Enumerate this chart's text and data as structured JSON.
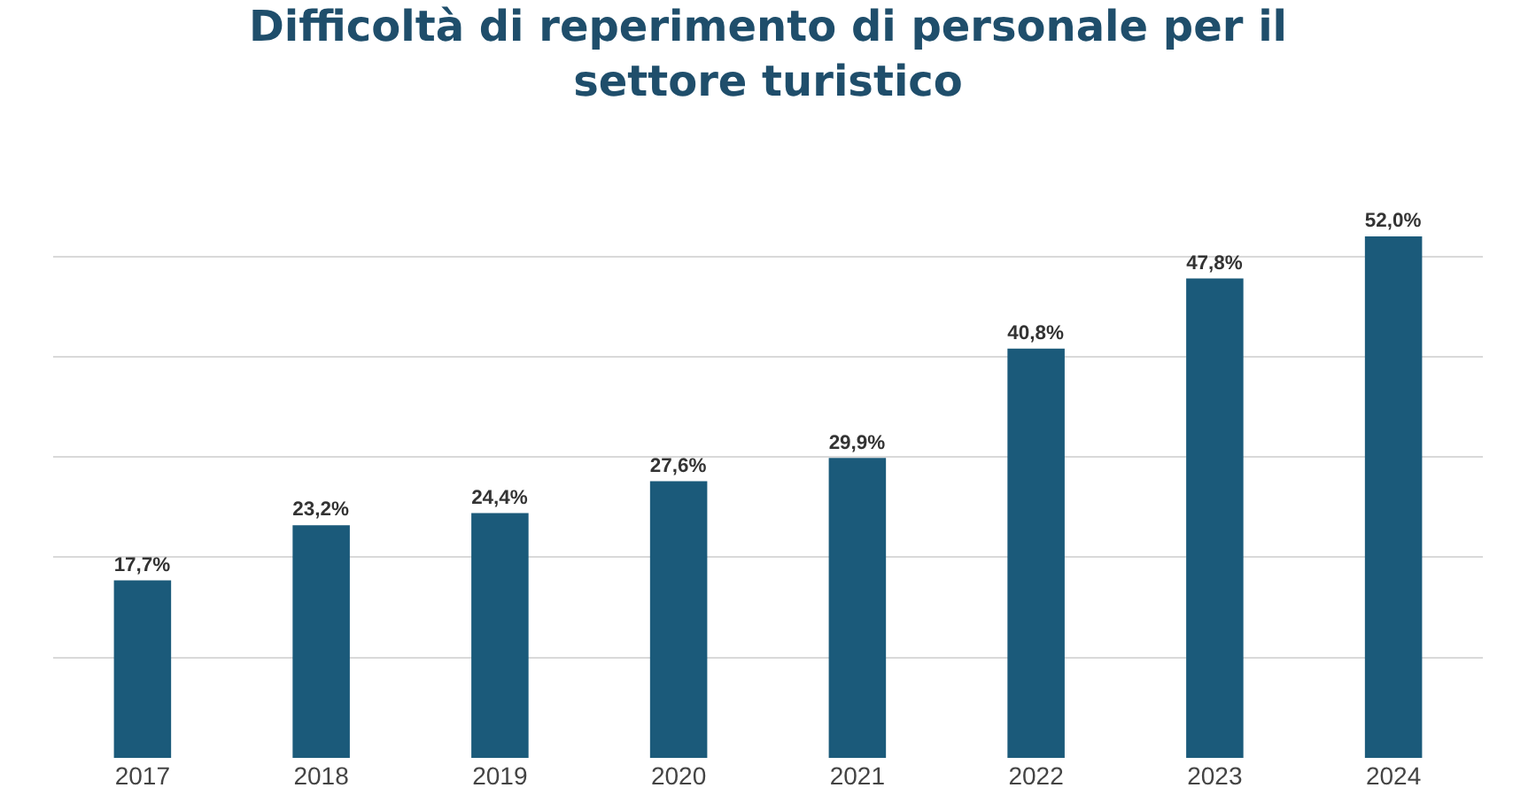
{
  "chart_data": {
    "type": "bar",
    "title": "Difficoltà di reperimento di personale per il\nsettore turistico",
    "categories": [
      "2017",
      "2018",
      "2019",
      "2020",
      "2021",
      "2022",
      "2023",
      "2024"
    ],
    "values": [
      17.7,
      23.2,
      24.4,
      27.6,
      29.9,
      40.8,
      47.8,
      52.0
    ],
    "value_labels": [
      "17,7%",
      "23,2%",
      "24,4%",
      "27,6%",
      "29,9%",
      "40,8%",
      "47,8%",
      "52,0%"
    ],
    "color": "#1b5a7a",
    "grid": "y",
    "tick_labels": "x"
  }
}
